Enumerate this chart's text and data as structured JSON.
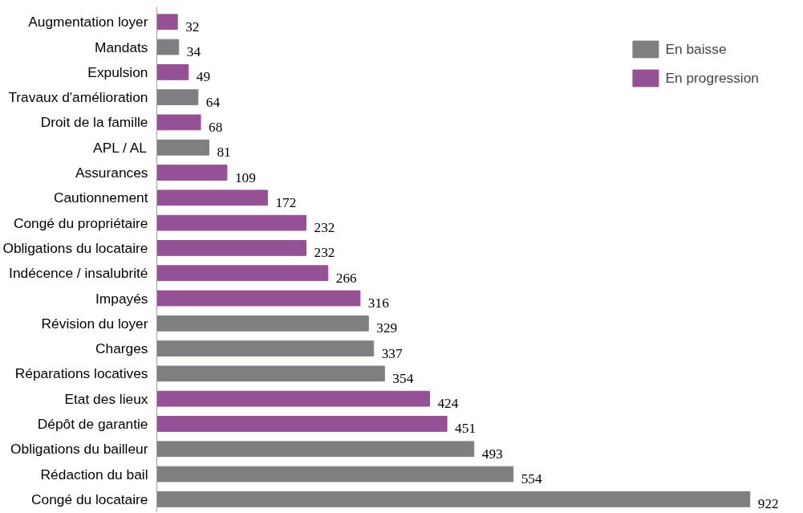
{
  "chart_data": {
    "type": "bar",
    "orientation": "horizontal",
    "data_labels": true,
    "legend": "top right",
    "grid": false,
    "categories": [
      "Augmentation loyer",
      "Mandats",
      "Expulsion",
      "Travaux d'amélioration",
      "Droit de la famille",
      "APL / AL",
      "Assurances",
      "Cautionnement",
      "Congé du propriétaire",
      "Obligations du locataire",
      "Indécence / insalubrité",
      "Impayés",
      "Révision du loyer",
      "Charges",
      "Réparations locatives",
      "Etat des lieux",
      "Dépôt de garantie",
      "Obligations du bailleur",
      "Rédaction du bail",
      "Congé du locataire"
    ],
    "series": [
      {
        "name": "En baisse",
        "color": "#7f7f82",
        "values": [
          null,
          34,
          null,
          64,
          null,
          81,
          null,
          null,
          null,
          null,
          null,
          null,
          329,
          337,
          354,
          null,
          null,
          493,
          554,
          922
        ]
      },
      {
        "name": "En progression",
        "color": "#955196",
        "values": [
          32,
          null,
          49,
          null,
          68,
          null,
          109,
          172,
          232,
          232,
          266,
          316,
          null,
          null,
          null,
          424,
          451,
          null,
          null,
          null
        ]
      }
    ]
  }
}
